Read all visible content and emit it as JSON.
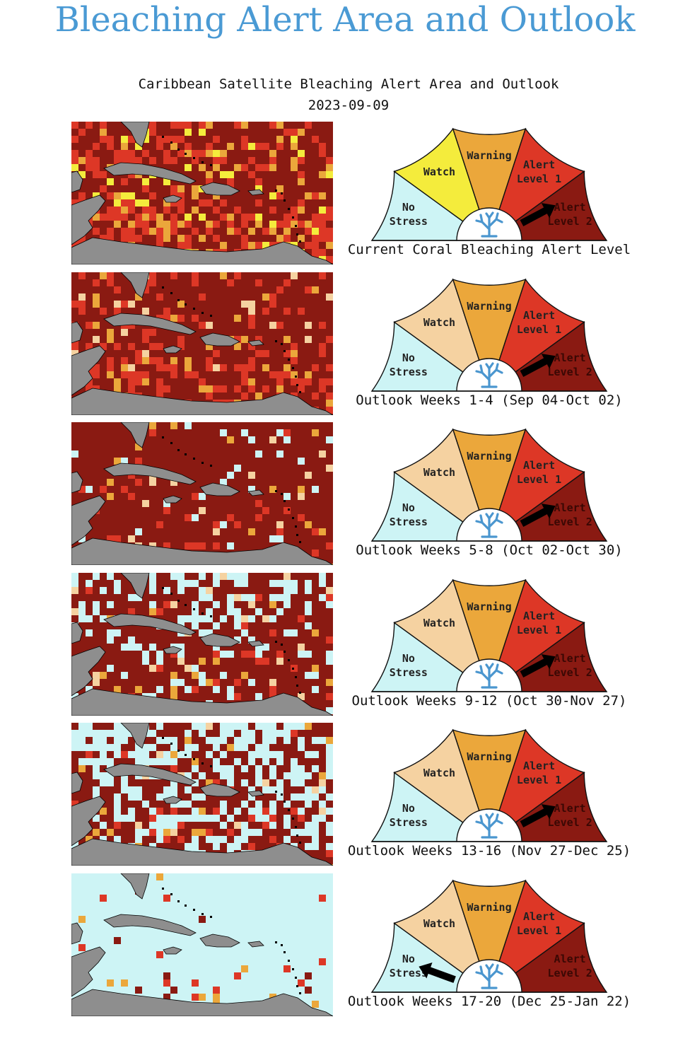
{
  "page": {
    "title": "Bleaching Alert Area and Outlook"
  },
  "chart_data": {
    "type": "gauge",
    "title": "Caribbean Satellite Bleaching Alert Area and Outlook",
    "subtitle": "2023-09-09",
    "segments": [
      {
        "key": "no_stress",
        "label_lines": [
          "No",
          "Stress"
        ]
      },
      {
        "key": "watch",
        "label_lines": [
          "Watch"
        ]
      },
      {
        "key": "warning",
        "label_lines": [
          "Warning"
        ]
      },
      {
        "key": "alert1",
        "label_lines": [
          "Alert",
          "Level 1"
        ]
      },
      {
        "key": "alert2",
        "label_lines": [
          "Alert",
          "Level 2"
        ]
      }
    ],
    "colors": {
      "no_stress": "#cdf4f5",
      "watch_current": "#f4ec3c",
      "watch_outlook": "#f5d2a1",
      "warning": "#eba73b",
      "alert1": "#dd3726",
      "alert2": "#8a1a12",
      "land": "#8e8e8e",
      "coral": "#4a96cf"
    },
    "panels": [
      {
        "caption": "Current Coral Bleaching Alert Level",
        "level": "Alert Level 2",
        "level_index": 4,
        "watch_color": "watch_current",
        "map_mix": {
          "alert2": 0.55,
          "alert1": 0.3,
          "warning": 0.1,
          "watch": 0.05,
          "no_stress": 0.0
        }
      },
      {
        "caption": "Outlook Weeks 1-4 (Sep 04-Oct 02)",
        "level": "Alert Level 2",
        "level_index": 4,
        "watch_color": "watch_outlook",
        "map_mix": {
          "alert2": 0.7,
          "alert1": 0.22,
          "warning": 0.05,
          "watch": 0.03,
          "no_stress": 0.0
        }
      },
      {
        "caption": "Outlook Weeks 5-8 (Oct 02-Oct 30)",
        "level": "Alert Level 2",
        "level_index": 4,
        "watch_color": "watch_outlook",
        "map_mix": {
          "alert2": 0.86,
          "alert1": 0.06,
          "warning": 0.02,
          "watch": 0.03,
          "no_stress": 0.03
        }
      },
      {
        "caption": "Outlook Weeks 9-12 (Oct 30-Nov 27)",
        "level": "Alert Level 2",
        "level_index": 4,
        "watch_color": "watch_outlook",
        "map_mix": {
          "alert2": 0.72,
          "alert1": 0.04,
          "warning": 0.02,
          "watch": 0.04,
          "no_stress": 0.18
        }
      },
      {
        "caption": "Outlook Weeks 13-16 (Nov 27-Dec 25)",
        "level": "Alert Level 2",
        "level_index": 4,
        "watch_color": "watch_outlook",
        "map_mix": {
          "alert2": 0.5,
          "alert1": 0.04,
          "warning": 0.02,
          "watch": 0.02,
          "no_stress": 0.42
        }
      },
      {
        "caption": "Outlook Weeks 17-20 (Dec 25-Jan 22)",
        "level": "No Stress",
        "level_index": 0,
        "watch_color": "watch_outlook",
        "map_mix": {
          "alert2": 0.02,
          "alert1": 0.02,
          "warning": 0.01,
          "watch": 0.0,
          "no_stress": 0.95
        }
      }
    ]
  }
}
